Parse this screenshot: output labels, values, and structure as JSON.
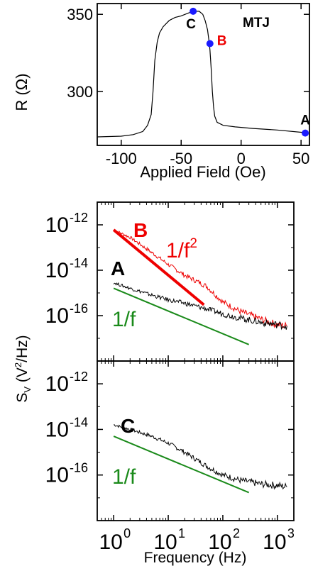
{
  "chart_data": [
    {
      "type": "line",
      "title": "",
      "inset_label": "MTJ",
      "xlabel": "Applied Field (Oe)",
      "ylabel": "R (Ω)",
      "xlim": [
        -120,
        57
      ],
      "ylim": [
        265,
        357
      ],
      "xticks": [
        -100,
        -50,
        0,
        50
      ],
      "xtick_labels": [
        "-100",
        "-50",
        "0",
        "50"
      ],
      "yticks": [
        300,
        350
      ],
      "ytick_labels": [
        "300",
        "350"
      ],
      "grid": false,
      "series": [
        {
          "x": [
            -120,
            -100,
            -90,
            -82,
            -78,
            -75,
            -73.5,
            -72,
            -70,
            -68,
            -65,
            -60,
            -55,
            -50,
            -45,
            -40,
            -35,
            -32,
            -30,
            -28,
            -27,
            -26,
            -25,
            -24,
            -23,
            -22,
            -20,
            -15,
            -5,
            10,
            30,
            50,
            55
          ],
          "y": [
            270.5,
            271,
            272,
            274,
            278,
            285,
            300,
            320,
            332,
            338,
            342,
            346,
            348,
            349,
            350.5,
            352,
            352,
            350,
            346,
            340,
            334,
            327,
            315,
            300,
            290,
            284,
            280,
            278,
            277,
            276,
            275,
            273.5,
            273
          ]
        }
      ],
      "points": [
        {
          "label": "C",
          "x": -40,
          "y": 352,
          "color": "#000000"
        },
        {
          "label": "B",
          "x": -26,
          "y": 331,
          "color": "#ee0000"
        },
        {
          "label": "A",
          "x": 53.5,
          "y": 273,
          "color": "#000000"
        }
      ],
      "marker_color": "#1a1aff"
    },
    {
      "type": "line",
      "xlabel": "",
      "ylabel": "S_V (V²/Hz)",
      "xscale": "log",
      "yscale": "log",
      "xlim": [
        0.5,
        2000
      ],
      "ylim": [
        1e-18,
        1e-11
      ],
      "yticks": [
        1e-12,
        1e-14,
        1e-16
      ],
      "ytick_labels": [
        "10-12",
        "10-14",
        "10-16"
      ],
      "grid": false,
      "series": [
        {
          "name": "B",
          "color": "#ee0000",
          "x": [
            1,
            2,
            5,
            10,
            20,
            50,
            100,
            200,
            500,
            1000,
            1500
          ],
          "y": [
            6e-13,
            2.8e-13,
            6e-14,
            1.8e-14,
            6e-15,
            2e-15,
            4e-16,
            1.6e-16,
            7e-17,
            4e-17,
            3.5e-17
          ]
        },
        {
          "name": "A",
          "color": "#000000",
          "x": [
            1,
            2,
            5,
            10,
            20,
            50,
            100,
            200,
            500,
            1000,
            1500
          ],
          "y": [
            2.8e-15,
            1.6e-15,
            8e-16,
            5e-16,
            3.5e-16,
            2e-16,
            1.2e-16,
            8e-17,
            5e-17,
            4e-17,
            3.5e-17
          ]
        }
      ],
      "guides": [
        {
          "label": "1/f²",
          "color": "#ee0000",
          "x": [
            1,
            45
          ],
          "y": [
            6e-13,
            3e-16
          ]
        },
        {
          "label": "1/f",
          "color": "#1a8a1a",
          "x": [
            1,
            300
          ],
          "y": [
            1.6e-15,
            5.3e-18
          ]
        }
      ],
      "annotations": [
        {
          "text": "B",
          "color": "#ee0000"
        },
        {
          "text": "1/f",
          "sup": "2",
          "color": "#ee0000"
        },
        {
          "text": "A",
          "color": "#000000"
        },
        {
          "text": "1/f",
          "color": "#1a8a1a"
        }
      ]
    },
    {
      "type": "line",
      "xlabel": "Frequency (Hz)",
      "xscale": "log",
      "yscale": "log",
      "xlim": [
        0.5,
        2000
      ],
      "ylim": [
        1e-18,
        1e-11
      ],
      "xticks": [
        1,
        10,
        100,
        1000
      ],
      "xtick_labels": [
        "10^0",
        "10^1",
        "10^2",
        "10^3"
      ],
      "yticks": [
        1e-12,
        1e-14,
        1e-16
      ],
      "ytick_labels": [
        "10-12",
        "10-14",
        "10-16"
      ],
      "grid": false,
      "series": [
        {
          "name": "C",
          "color": "#000000",
          "x": [
            1,
            2,
            5,
            10,
            20,
            50,
            100,
            200,
            500,
            1000,
            1500
          ],
          "y": [
            1.6e-14,
            1e-14,
            5e-15,
            2.5e-15,
            1e-15,
            2.5e-16,
            1e-16,
            6e-17,
            4e-17,
            3.5e-17,
            3e-17
          ]
        }
      ],
      "guides": [
        {
          "label": "1/f",
          "color": "#1a8a1a",
          "x": [
            1,
            300
          ],
          "y": [
            5e-15,
            1.7e-17
          ]
        }
      ],
      "annotations": [
        {
          "text": "C",
          "color": "#000000"
        },
        {
          "text": "1/f",
          "color": "#1a8a1a"
        }
      ]
    }
  ]
}
